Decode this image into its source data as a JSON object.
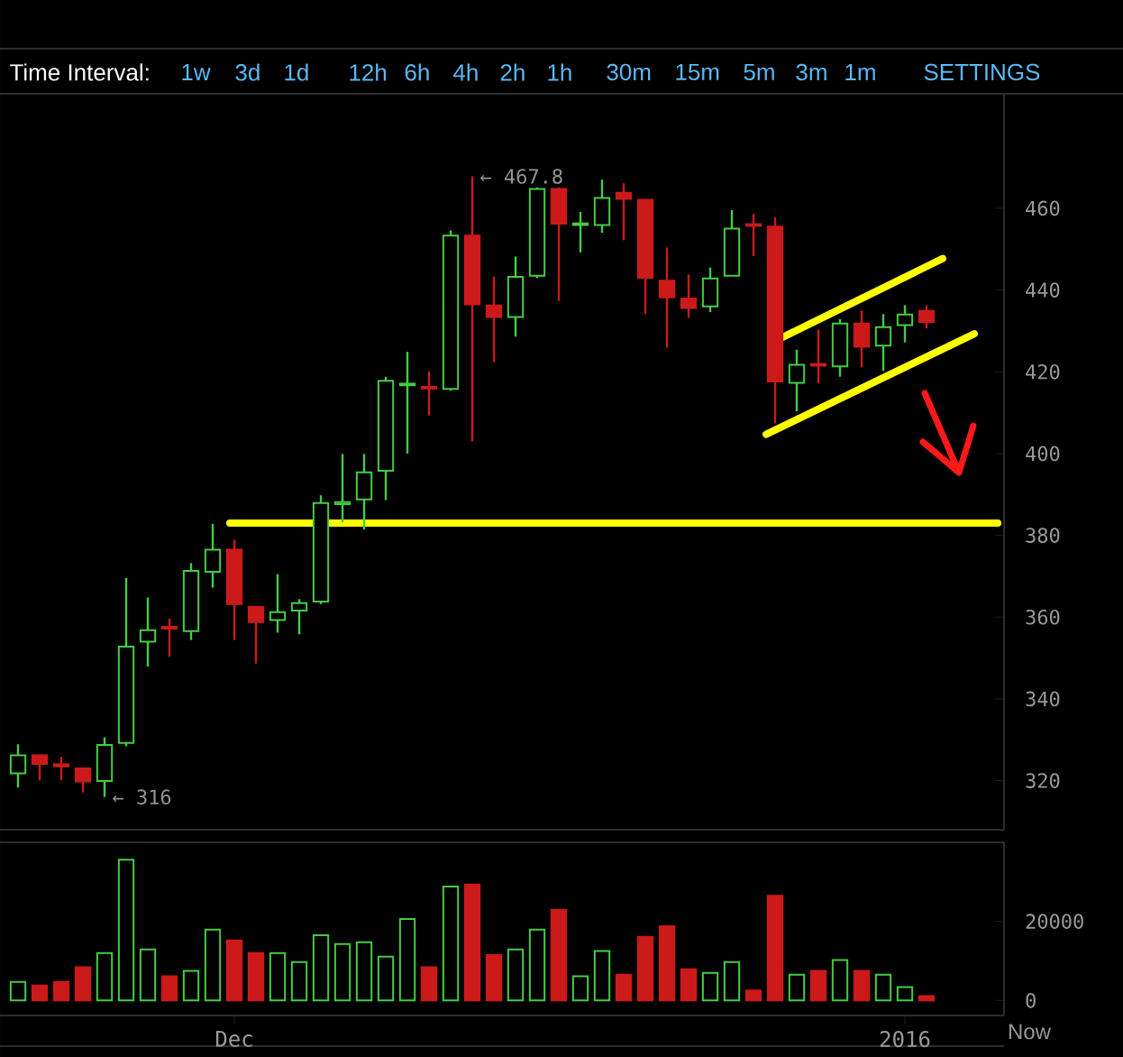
{
  "chart_data": [
    {
      "type": "candlestick",
      "x": [
        "2015-11-21",
        "2015-11-22",
        "2015-11-23",
        "2015-11-24",
        "2015-11-25",
        "2015-11-26",
        "2015-11-27",
        "2015-11-28",
        "2015-11-29",
        "2015-11-30",
        "2015-12-01",
        "2015-12-02",
        "2015-12-03",
        "2015-12-04",
        "2015-12-05",
        "2015-12-06",
        "2015-12-07",
        "2015-12-08",
        "2015-12-09",
        "2015-12-10",
        "2015-12-11",
        "2015-12-12",
        "2015-12-13",
        "2015-12-14",
        "2015-12-15",
        "2015-12-16",
        "2015-12-17",
        "2015-12-18",
        "2015-12-19",
        "2015-12-20",
        "2015-12-21",
        "2015-12-22",
        "2015-12-23",
        "2015-12-24",
        "2015-12-25",
        "2015-12-26",
        "2015-12-27",
        "2015-12-28",
        "2015-12-29",
        "2015-12-30",
        "2015-12-31",
        "2016-01-01",
        "2016-01-02"
      ],
      "ohlc": [
        [
          321.8,
          328.9,
          318.3,
          326.2
        ],
        [
          326.2,
          326.2,
          320.1,
          324.1
        ],
        [
          324.0,
          325.8,
          320.1,
          323.5
        ],
        [
          323.0,
          323.0,
          317.1,
          319.8
        ],
        [
          319.9,
          330.6,
          316.0,
          328.7
        ],
        [
          329.2,
          369.6,
          328.4,
          352.8
        ],
        [
          354.0,
          364.8,
          347.9,
          356.8
        ],
        [
          357.6,
          359.6,
          350.3,
          357.2
        ],
        [
          356.6,
          373.2,
          354.4,
          371.3
        ],
        [
          371.1,
          382.8,
          367.2,
          376.5
        ],
        [
          376.5,
          378.9,
          354.4,
          363.2
        ],
        [
          362.5,
          362.5,
          348.6,
          358.8
        ],
        [
          359.3,
          370.5,
          356.2,
          361.2
        ],
        [
          361.6,
          364.4,
          355.8,
          363.4
        ],
        [
          363.8,
          389.8,
          363.2,
          387.9
        ],
        [
          387.6,
          399.9,
          383.2,
          388.1
        ],
        [
          388.8,
          399.9,
          381.4,
          395.4
        ],
        [
          395.8,
          418.8,
          388.6,
          417.8
        ],
        [
          416.7,
          424.9,
          400.0,
          417.1
        ],
        [
          416.3,
          420.1,
          409.3,
          415.9
        ],
        [
          415.8,
          454.6,
          415.4,
          453.3
        ],
        [
          453.3,
          467.8,
          403.0,
          436.5
        ],
        [
          436.2,
          443.3,
          422.4,
          433.4
        ],
        [
          433.4,
          448.2,
          428.6,
          443.2
        ],
        [
          443.5,
          465.1,
          442.9,
          464.7
        ],
        [
          464.7,
          465.1,
          437.3,
          456.2
        ],
        [
          455.9,
          459.1,
          449.2,
          456.3
        ],
        [
          455.9,
          467.0,
          454.0,
          462.5
        ],
        [
          463.8,
          466.1,
          452.2,
          462.3
        ],
        [
          462.1,
          462.1,
          434.1,
          443.0
        ],
        [
          442.3,
          450.4,
          425.9,
          438.2
        ],
        [
          437.9,
          443.8,
          433.2,
          435.6
        ],
        [
          436.0,
          445.5,
          434.6,
          442.8
        ],
        [
          443.5,
          459.6,
          443.5,
          455.0
        ],
        [
          456.1,
          458.6,
          448.3,
          455.7
        ],
        [
          455.5,
          457.8,
          407.4,
          417.6
        ],
        [
          417.3,
          425.4,
          410.3,
          421.7
        ],
        [
          421.9,
          430.3,
          417.2,
          421.5
        ],
        [
          421.3,
          432.9,
          418.8,
          431.8
        ],
        [
          431.8,
          435.0,
          421.1,
          426.1
        ],
        [
          426.4,
          434.1,
          420.2,
          430.9
        ],
        [
          431.4,
          436.3,
          427.2,
          434.0
        ],
        [
          434.9,
          436.3,
          430.6,
          432.2
        ]
      ],
      "colors": [
        "#44cc44",
        "#cc1a1a",
        "#cc1a1a",
        "#cc1a1a",
        "#44cc44",
        "#44cc44",
        "#44cc44",
        "#cc1a1a",
        "#44cc44",
        "#44cc44",
        "#cc1a1a",
        "#cc1a1a",
        "#44cc44",
        "#44cc44",
        "#44cc44",
        "#44cc44",
        "#44cc44",
        "#44cc44",
        "#44cc44",
        "#cc1a1a",
        "#44cc44",
        "#cc1a1a",
        "#cc1a1a",
        "#44cc44",
        "#44cc44",
        "#cc1a1a",
        "#44cc44",
        "#44cc44",
        "#cc1a1a",
        "#cc1a1a",
        "#cc1a1a",
        "#cc1a1a",
        "#44cc44",
        "#44cc44",
        "#cc1a1a",
        "#cc1a1a",
        "#44cc44",
        "#cc1a1a",
        "#44cc44",
        "#cc1a1a",
        "#44cc44",
        "#44cc44",
        "#cc1a1a"
      ],
      "series": [
        {
          "type": "line",
          "color": "#ffff00",
          "x": [
            "2015-11-30T19:00",
            "2016-01-05T07:00"
          ],
          "values": [
            383,
            383
          ]
        },
        {
          "type": "line",
          "color": "#ffff00",
          "x": [
            "2015-12-26T08:00",
            "2016-01-02T18:00"
          ],
          "values": [
            428.4,
            447.7
          ]
        },
        {
          "type": "line",
          "color": "#ffff00",
          "x": [
            "2015-12-25T14:00",
            "2016-01-04T05:00"
          ],
          "values": [
            404.7,
            429.3
          ]
        }
      ],
      "xlim": [
        "2015-11-20T04:00",
        "2016-01-05T14:00"
      ],
      "ylim": [
        308,
        488
      ],
      "yticks": [
        320,
        340,
        360,
        380,
        400,
        420,
        440,
        460
      ],
      "tick_labels": "y",
      "annotations": [
        {
          "text": "← 467.8",
          "x": "2015-12-12",
          "y": 467.8
        },
        {
          "text": "← 316",
          "x": "2015-11-25",
          "y": 316
        },
        "Time Interval:",
        "1w",
        "3d",
        "1d",
        "12h",
        "6h",
        "4h",
        "2h",
        "1h",
        "30m",
        "15m",
        "5m",
        "3m",
        "1m",
        "SETTINGS"
      ]
    },
    {
      "type": "bar",
      "x": [
        "2015-11-21",
        "2015-11-22",
        "2015-11-23",
        "2015-11-24",
        "2015-11-25",
        "2015-11-26",
        "2015-11-27",
        "2015-11-28",
        "2015-11-29",
        "2015-11-30",
        "2015-12-01",
        "2015-12-02",
        "2015-12-03",
        "2015-12-04",
        "2015-12-05",
        "2015-12-06",
        "2015-12-07",
        "2015-12-08",
        "2015-12-09",
        "2015-12-10",
        "2015-12-11",
        "2015-12-12",
        "2015-12-13",
        "2015-12-14",
        "2015-12-15",
        "2015-12-16",
        "2015-12-17",
        "2015-12-18",
        "2015-12-19",
        "2015-12-20",
        "2015-12-21",
        "2015-12-22",
        "2015-12-23",
        "2015-12-24",
        "2015-12-25",
        "2015-12-26",
        "2015-12-27",
        "2015-12-28",
        "2015-12-29",
        "2015-12-30",
        "2015-12-31",
        "2016-01-01",
        "2016-01-02"
      ],
      "values": [
        4700,
        3800,
        4700,
        8400,
        12000,
        35600,
        12900,
        6100,
        7500,
        17900,
        15200,
        12000,
        12000,
        9700,
        16500,
        14300,
        14700,
        11100,
        20600,
        8400,
        28800,
        29300,
        11500,
        12900,
        17900,
        22900,
        6100,
        12500,
        6500,
        16100,
        18800,
        7900,
        7000,
        9700,
        2500,
        26500,
        6500,
        7500,
        10200,
        7500,
        6500,
        3400,
        1100
      ],
      "colors": [
        "#44cc44",
        "#cc1a1a",
        "#cc1a1a",
        "#cc1a1a",
        "#44cc44",
        "#44cc44",
        "#44cc44",
        "#cc1a1a",
        "#44cc44",
        "#44cc44",
        "#cc1a1a",
        "#cc1a1a",
        "#44cc44",
        "#44cc44",
        "#44cc44",
        "#44cc44",
        "#44cc44",
        "#44cc44",
        "#44cc44",
        "#cc1a1a",
        "#44cc44",
        "#cc1a1a",
        "#cc1a1a",
        "#44cc44",
        "#44cc44",
        "#cc1a1a",
        "#44cc44",
        "#44cc44",
        "#cc1a1a",
        "#cc1a1a",
        "#cc1a1a",
        "#cc1a1a",
        "#44cc44",
        "#44cc44",
        "#cc1a1a",
        "#cc1a1a",
        "#44cc44",
        "#cc1a1a",
        "#44cc44",
        "#cc1a1a",
        "#44cc44",
        "#44cc44",
        "#cc1a1a"
      ],
      "xlim": [
        "2015-11-20T04:00",
        "2016-01-05T14:00"
      ],
      "ylim": [
        -3800,
        40000
      ],
      "yticks": [
        0,
        20000
      ],
      "xticks": [
        {
          "value": "2015-12-01",
          "label": "Dec"
        },
        {
          "value": "2016-01-01",
          "label": "2016"
        }
      ],
      "annotations": [
        "Now"
      ]
    }
  ]
}
